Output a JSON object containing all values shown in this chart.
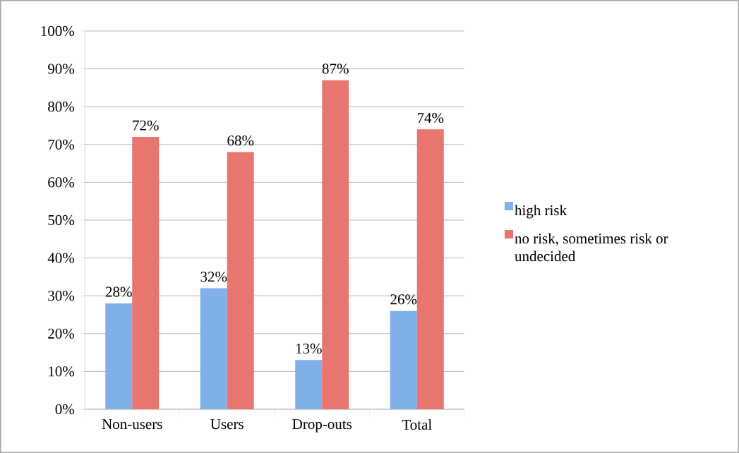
{
  "chart_data": {
    "type": "bar",
    "categories": [
      "Non-users",
      "Users",
      "Drop-outs",
      "Total"
    ],
    "series": [
      {
        "name": "high risk",
        "color": "#7fb0ea",
        "values": [
          28,
          32,
          13,
          26
        ],
        "value_labels": [
          "28%",
          "32%",
          "13%",
          "26%"
        ]
      },
      {
        "name": "no risk, sometimes risk or undecided",
        "color": "#e8756e",
        "values": [
          72,
          68,
          87,
          74
        ],
        "value_labels": [
          "72%",
          "68%",
          "87%",
          "74%"
        ]
      }
    ],
    "ylim": [
      0,
      100
    ],
    "yticks": [
      {
        "value": 0,
        "label": "0%"
      },
      {
        "value": 10,
        "label": "10%"
      },
      {
        "value": 20,
        "label": "20%"
      },
      {
        "value": 30,
        "label": "30%"
      },
      {
        "value": 40,
        "label": "40%"
      },
      {
        "value": 50,
        "label": "50%"
      },
      {
        "value": 60,
        "label": "60%"
      },
      {
        "value": 70,
        "label": "70%"
      },
      {
        "value": 80,
        "label": "80%"
      },
      {
        "value": 90,
        "label": "90%"
      },
      {
        "value": 100,
        "label": "100%"
      }
    ],
    "grid": "y",
    "legend": "right"
  }
}
